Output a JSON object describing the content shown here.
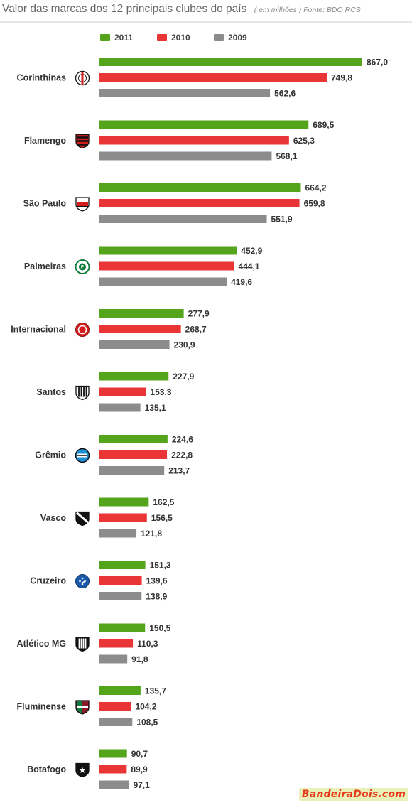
{
  "title": "Valor das marcas dos 12 principais clubes do país",
  "note": "( em milhões ) Fonte: BDO RCS",
  "watermark": "BandeiraDois.com",
  "chart_data": {
    "type": "bar",
    "orientation": "horizontal",
    "title": "Valor das marcas dos 12 principais clubes do país",
    "unit": "( em milhões )",
    "source": "Fonte: BDO RCS",
    "legend_position": "top",
    "grid": false,
    "xlim": [
      0,
      900
    ],
    "categories": [
      "Corinthinas",
      "Flamengo",
      "São Paulo",
      "Palmeiras",
      "Internacional",
      "Santos",
      "Grêmio",
      "Vasco",
      "Cruzeiro",
      "Atlético MG",
      "Fluminense",
      "Botafogo"
    ],
    "series": [
      {
        "name": "2011",
        "color": "#55a51c",
        "values": [
          867.0,
          689.5,
          664.2,
          452.9,
          277.9,
          227.9,
          224.6,
          162.5,
          151.3,
          150.5,
          135.7,
          90.7
        ],
        "labels": [
          "867,0",
          "689,5",
          "664,2",
          "452,9",
          "277,9",
          "227,9",
          "224,6",
          "162,5",
          "151,3",
          "150,5",
          "135,7",
          "90,7"
        ]
      },
      {
        "name": "2010",
        "color": "#e93535",
        "values": [
          749.8,
          625.3,
          659.8,
          444.1,
          268.7,
          153.3,
          222.8,
          156.5,
          139.6,
          110.3,
          104.2,
          89.9
        ],
        "labels": [
          "749,8",
          "625,3",
          "659,8",
          "444,1",
          "268,7",
          "153,3",
          "222,8",
          "156,5",
          "139,6",
          "110,3",
          "104,2",
          "89,9"
        ]
      },
      {
        "name": "2009",
        "color": "#8c8c8c",
        "values": [
          562.6,
          568.1,
          551.9,
          419.6,
          230.9,
          135.1,
          213.7,
          121.8,
          138.9,
          91.8,
          108.5,
          97.1
        ],
        "labels": [
          "562,6",
          "568,1",
          "551,9",
          "419,6",
          "230,9",
          "135,1",
          "213,7",
          "121,8",
          "138,9",
          "91,8",
          "108,5",
          "97,1"
        ]
      }
    ],
    "club_crests": [
      {
        "icon": "corinthians-crest-icon",
        "colors": [
          "#ffffff",
          "#222222",
          "#d22222"
        ]
      },
      {
        "icon": "flamengo-crest-icon",
        "colors": [
          "#d41d1d",
          "#111111"
        ]
      },
      {
        "icon": "sao-paulo-crest-icon",
        "colors": [
          "#ffffff",
          "#d41d1d",
          "#111111"
        ]
      },
      {
        "icon": "palmeiras-crest-icon",
        "colors": [
          "#0d7a3a",
          "#ffffff"
        ]
      },
      {
        "icon": "internacional-crest-icon",
        "colors": [
          "#d41d1d",
          "#ffffff"
        ]
      },
      {
        "icon": "santos-crest-icon",
        "colors": [
          "#ffffff",
          "#111111"
        ]
      },
      {
        "icon": "gremio-crest-icon",
        "colors": [
          "#1b8ed2",
          "#111111",
          "#ffffff"
        ]
      },
      {
        "icon": "vasco-crest-icon",
        "colors": [
          "#111111",
          "#ffffff"
        ]
      },
      {
        "icon": "cruzeiro-crest-icon",
        "colors": [
          "#1a5aa8",
          "#ffffff"
        ]
      },
      {
        "icon": "atletico-mg-crest-icon",
        "colors": [
          "#111111",
          "#ffffff"
        ]
      },
      {
        "icon": "fluminense-crest-icon",
        "colors": [
          "#8a1a2e",
          "#0d7a3a",
          "#ffffff"
        ]
      },
      {
        "icon": "botafogo-crest-icon",
        "colors": [
          "#111111",
          "#ffffff"
        ]
      }
    ]
  }
}
